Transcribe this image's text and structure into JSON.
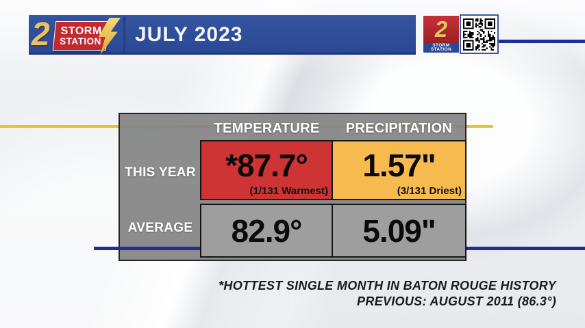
{
  "chart_data": {
    "type": "table",
    "title": "JULY 2023",
    "columns": [
      "TEMPERATURE",
      "PRECIPITATION"
    ],
    "rows": [
      {
        "label": "THIS YEAR",
        "temperature": "*87.7°",
        "temperature_rank": "(1/131 Warmest)",
        "precipitation": "1.57\"",
        "precipitation_rank": "(3/131 Driest)"
      },
      {
        "label": "AVERAGE",
        "temperature": "82.9°",
        "precipitation": "5.09\""
      }
    ],
    "annotations": [
      "*HOTTEST SINGLE MONTH IN BATON ROUGE HISTORY",
      "PREVIOUS: AUGUST 2011 (86.3°)"
    ]
  },
  "banner": {
    "title": "JULY 2023",
    "logo": {
      "number": "2",
      "line1": "STORM",
      "line2": "STATION"
    }
  },
  "corner_logo": {
    "number": "2",
    "line1": "STORM",
    "line2": "STATION"
  },
  "table": {
    "col_headers": [
      "TEMPERATURE",
      "PRECIPITATION"
    ],
    "row_labels": [
      "THIS YEAR",
      "AVERAGE"
    ],
    "this_year": {
      "temp": "*87.7°",
      "temp_note": "(1/131 Warmest)",
      "precip": "1.57\"",
      "precip_note": "(3/131 Driest)"
    },
    "average": {
      "temp": "82.9°",
      "precip": "5.09\""
    }
  },
  "footnote": {
    "line1": "*HOTTEST SINGLE MONTH IN BATON ROUGE HISTORY",
    "line2": "PREVIOUS: AUGUST 2011 (86.3°)"
  },
  "colors": {
    "banner_blue": "#2e4d9c",
    "navy_line": "#1c2e99",
    "yellow_line": "#e6c32d",
    "table_gray": "#838383",
    "average_cell_gray": "#9e9e9e",
    "hot_red": "#ce3434",
    "dry_orange": "#f7ba4e"
  }
}
